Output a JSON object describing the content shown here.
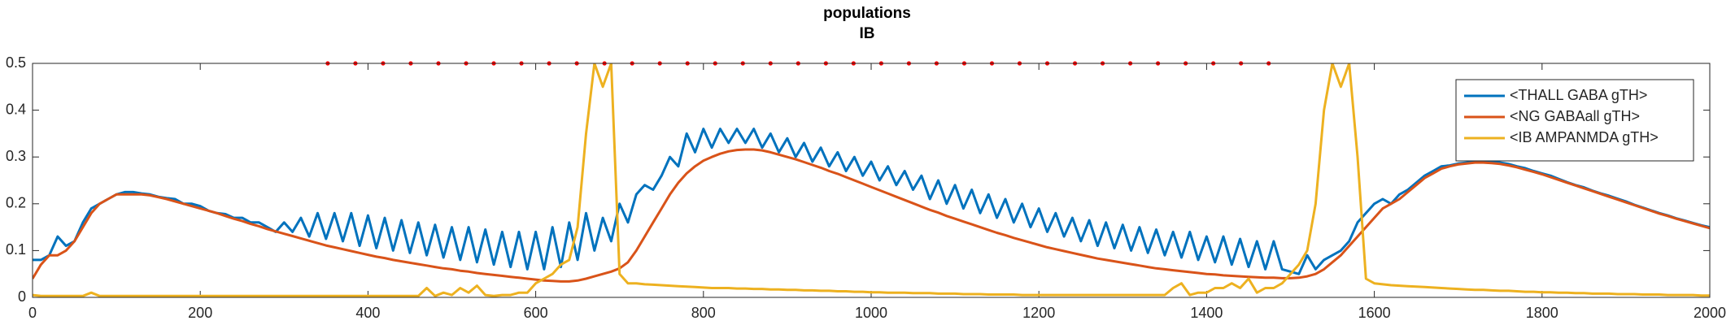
{
  "chart_data": {
    "type": "line",
    "title": "populations",
    "subtitle": "IB",
    "x": [
      0,
      10,
      20,
      30,
      40,
      50,
      60,
      70,
      80,
      90,
      100,
      110,
      120,
      130,
      140,
      150,
      160,
      170,
      180,
      190,
      200,
      210,
      220,
      230,
      240,
      250,
      260,
      270,
      280,
      290,
      300,
      310,
      320,
      330,
      340,
      350,
      360,
      370,
      380,
      390,
      400,
      410,
      420,
      430,
      440,
      450,
      460,
      470,
      480,
      490,
      500,
      510,
      520,
      530,
      540,
      550,
      560,
      570,
      580,
      590,
      600,
      610,
      620,
      630,
      640,
      650,
      660,
      670,
      680,
      690,
      700,
      710,
      720,
      730,
      740,
      750,
      760,
      770,
      780,
      790,
      800,
      810,
      820,
      830,
      840,
      850,
      860,
      870,
      880,
      890,
      900,
      910,
      920,
      930,
      940,
      950,
      960,
      970,
      980,
      990,
      1000,
      1010,
      1020,
      1030,
      1040,
      1050,
      1060,
      1070,
      1080,
      1090,
      1100,
      1110,
      1120,
      1130,
      1140,
      1150,
      1160,
      1170,
      1180,
      1190,
      1200,
      1210,
      1220,
      1230,
      1240,
      1250,
      1260,
      1270,
      1280,
      1290,
      1300,
      1310,
      1320,
      1330,
      1340,
      1350,
      1360,
      1370,
      1380,
      1390,
      1400,
      1410,
      1420,
      1430,
      1440,
      1450,
      1460,
      1470,
      1480,
      1490,
      1500,
      1510,
      1520,
      1530,
      1540,
      1550,
      1560,
      1570,
      1580,
      1590,
      1600,
      1610,
      1620,
      1630,
      1640,
      1650,
      1660,
      1670,
      1680,
      1690,
      1700,
      1710,
      1720,
      1730,
      1740,
      1750,
      1760,
      1770,
      1780,
      1790,
      1800,
      1810,
      1820,
      1830,
      1840,
      1850,
      1860,
      1870,
      1880,
      1890,
      1900,
      1910,
      1920,
      1930,
      1940,
      1950,
      1960,
      1970,
      1980,
      1990,
      2000
    ],
    "series": [
      {
        "name": "<THALL GABA gTH>",
        "color": "#0072bd",
        "values": [
          0.08,
          0.08,
          0.09,
          0.13,
          0.11,
          0.12,
          0.16,
          0.19,
          0.2,
          0.21,
          0.22,
          0.225,
          0.225,
          0.222,
          0.22,
          0.215,
          0.212,
          0.21,
          0.2,
          0.2,
          0.195,
          0.185,
          0.18,
          0.178,
          0.17,
          0.17,
          0.16,
          0.16,
          0.15,
          0.14,
          0.16,
          0.14,
          0.17,
          0.13,
          0.18,
          0.125,
          0.18,
          0.12,
          0.18,
          0.11,
          0.175,
          0.105,
          0.17,
          0.1,
          0.165,
          0.095,
          0.16,
          0.09,
          0.155,
          0.085,
          0.15,
          0.08,
          0.15,
          0.075,
          0.145,
          0.07,
          0.14,
          0.065,
          0.14,
          0.06,
          0.14,
          0.06,
          0.15,
          0.065,
          0.16,
          0.08,
          0.18,
          0.1,
          0.17,
          0.12,
          0.2,
          0.16,
          0.22,
          0.24,
          0.23,
          0.26,
          0.3,
          0.28,
          0.35,
          0.31,
          0.36,
          0.32,
          0.36,
          0.33,
          0.36,
          0.33,
          0.36,
          0.32,
          0.35,
          0.31,
          0.34,
          0.3,
          0.33,
          0.29,
          0.32,
          0.28,
          0.31,
          0.27,
          0.3,
          0.26,
          0.29,
          0.25,
          0.28,
          0.24,
          0.27,
          0.23,
          0.26,
          0.21,
          0.25,
          0.2,
          0.24,
          0.19,
          0.23,
          0.18,
          0.22,
          0.17,
          0.21,
          0.16,
          0.2,
          0.15,
          0.19,
          0.14,
          0.18,
          0.13,
          0.17,
          0.12,
          0.165,
          0.11,
          0.16,
          0.105,
          0.155,
          0.1,
          0.15,
          0.095,
          0.145,
          0.09,
          0.14,
          0.085,
          0.14,
          0.08,
          0.13,
          0.075,
          0.13,
          0.07,
          0.125,
          0.065,
          0.12,
          0.06,
          0.12,
          0.06,
          0.055,
          0.05,
          0.09,
          0.06,
          0.08,
          0.09,
          0.1,
          0.12,
          0.16,
          0.18,
          0.2,
          0.21,
          0.2,
          0.22,
          0.23,
          0.245,
          0.26,
          0.27,
          0.28,
          0.282,
          0.286,
          0.288,
          0.29,
          0.29,
          0.29,
          0.288,
          0.285,
          0.28,
          0.276,
          0.27,
          0.265,
          0.26,
          0.253,
          0.246,
          0.24,
          0.235,
          0.228,
          0.222,
          0.217,
          0.211,
          0.205,
          0.198,
          0.192,
          0.186,
          0.18,
          0.175,
          0.169,
          0.164,
          0.159,
          0.154,
          0.15
        ]
      },
      {
        "name": "<NG GABAall gTH>",
        "color": "#d95319",
        "values": [
          0.04,
          0.07,
          0.09,
          0.09,
          0.1,
          0.12,
          0.15,
          0.18,
          0.2,
          0.21,
          0.22,
          0.22,
          0.22,
          0.22,
          0.218,
          0.214,
          0.21,
          0.205,
          0.2,
          0.195,
          0.19,
          0.185,
          0.18,
          0.174,
          0.168,
          0.163,
          0.157,
          0.152,
          0.146,
          0.141,
          0.136,
          0.131,
          0.126,
          0.121,
          0.116,
          0.111,
          0.107,
          0.103,
          0.099,
          0.095,
          0.091,
          0.087,
          0.084,
          0.08,
          0.077,
          0.074,
          0.071,
          0.068,
          0.065,
          0.062,
          0.06,
          0.057,
          0.055,
          0.052,
          0.05,
          0.048,
          0.046,
          0.044,
          0.042,
          0.04,
          0.038,
          0.036,
          0.035,
          0.034,
          0.034,
          0.036,
          0.04,
          0.045,
          0.05,
          0.055,
          0.062,
          0.075,
          0.1,
          0.13,
          0.16,
          0.19,
          0.22,
          0.245,
          0.265,
          0.28,
          0.292,
          0.3,
          0.307,
          0.312,
          0.315,
          0.316,
          0.316,
          0.314,
          0.31,
          0.305,
          0.3,
          0.295,
          0.289,
          0.283,
          0.277,
          0.27,
          0.264,
          0.257,
          0.25,
          0.243,
          0.236,
          0.229,
          0.222,
          0.215,
          0.208,
          0.201,
          0.194,
          0.187,
          0.181,
          0.174,
          0.168,
          0.162,
          0.156,
          0.15,
          0.144,
          0.138,
          0.133,
          0.127,
          0.122,
          0.117,
          0.112,
          0.107,
          0.103,
          0.099,
          0.095,
          0.091,
          0.087,
          0.083,
          0.08,
          0.077,
          0.074,
          0.071,
          0.068,
          0.065,
          0.062,
          0.06,
          0.058,
          0.056,
          0.054,
          0.052,
          0.05,
          0.049,
          0.047,
          0.046,
          0.045,
          0.044,
          0.043,
          0.042,
          0.042,
          0.041,
          0.041,
          0.042,
          0.045,
          0.05,
          0.06,
          0.075,
          0.09,
          0.11,
          0.13,
          0.15,
          0.17,
          0.19,
          0.2,
          0.21,
          0.225,
          0.24,
          0.255,
          0.265,
          0.275,
          0.28,
          0.284,
          0.286,
          0.288,
          0.288,
          0.287,
          0.285,
          0.282,
          0.278,
          0.273,
          0.268,
          0.263,
          0.257,
          0.251,
          0.245,
          0.239,
          0.233,
          0.227,
          0.221,
          0.215,
          0.209,
          0.203,
          0.197,
          0.191,
          0.185,
          0.179,
          0.174,
          0.168,
          0.163,
          0.158,
          0.153,
          0.148
        ]
      },
      {
        "name": "<IB AMPANMDA gTH>",
        "color": "#edb120",
        "values": [
          0.005,
          0.003,
          0.003,
          0.003,
          0.003,
          0.003,
          0.003,
          0.01,
          0.003,
          0.003,
          0.003,
          0.003,
          0.003,
          0.003,
          0.003,
          0.003,
          0.003,
          0.003,
          0.003,
          0.003,
          0.003,
          0.003,
          0.003,
          0.003,
          0.003,
          0.003,
          0.003,
          0.003,
          0.003,
          0.003,
          0.003,
          0.003,
          0.003,
          0.003,
          0.003,
          0.003,
          0.003,
          0.003,
          0.003,
          0.003,
          0.003,
          0.003,
          0.003,
          0.003,
          0.003,
          0.003,
          0.003,
          0.02,
          0.003,
          0.01,
          0.005,
          0.02,
          0.01,
          0.025,
          0.005,
          0.003,
          0.005,
          0.005,
          0.01,
          0.01,
          0.03,
          0.04,
          0.05,
          0.07,
          0.08,
          0.15,
          0.35,
          0.5,
          0.45,
          0.5,
          0.05,
          0.03,
          0.03,
          0.028,
          0.027,
          0.026,
          0.025,
          0.024,
          0.023,
          0.022,
          0.021,
          0.02,
          0.02,
          0.02,
          0.019,
          0.019,
          0.018,
          0.018,
          0.017,
          0.017,
          0.016,
          0.016,
          0.015,
          0.015,
          0.014,
          0.014,
          0.013,
          0.013,
          0.012,
          0.012,
          0.011,
          0.011,
          0.01,
          0.01,
          0.01,
          0.009,
          0.009,
          0.009,
          0.008,
          0.008,
          0.008,
          0.007,
          0.007,
          0.007,
          0.006,
          0.006,
          0.006,
          0.006,
          0.005,
          0.005,
          0.005,
          0.005,
          0.005,
          0.005,
          0.005,
          0.005,
          0.005,
          0.005,
          0.005,
          0.005,
          0.005,
          0.005,
          0.005,
          0.005,
          0.005,
          0.005,
          0.02,
          0.03,
          0.005,
          0.01,
          0.01,
          0.02,
          0.02,
          0.03,
          0.02,
          0.04,
          0.01,
          0.02,
          0.02,
          0.03,
          0.05,
          0.07,
          0.1,
          0.2,
          0.4,
          0.5,
          0.45,
          0.5,
          0.3,
          0.04,
          0.03,
          0.028,
          0.026,
          0.025,
          0.024,
          0.023,
          0.022,
          0.021,
          0.02,
          0.019,
          0.018,
          0.017,
          0.016,
          0.016,
          0.015,
          0.014,
          0.014,
          0.013,
          0.012,
          0.012,
          0.011,
          0.011,
          0.01,
          0.01,
          0.009,
          0.009,
          0.008,
          0.008,
          0.008,
          0.007,
          0.007,
          0.007,
          0.006,
          0.006,
          0.006,
          0.005,
          0.005,
          0.005,
          0.005,
          0.004,
          0.004
        ]
      }
    ],
    "markers": {
      "color": "#ff0000",
      "x": [
        352,
        385,
        418,
        451,
        484,
        517,
        550,
        583,
        616,
        649,
        682,
        715,
        748,
        781,
        814,
        847,
        880,
        913,
        946,
        979,
        1012,
        1045,
        1078,
        1111,
        1144,
        1177,
        1210,
        1243,
        1276,
        1309,
        1342,
        1375,
        1408,
        1441,
        1474
      ],
      "values": [
        0.5,
        0.5,
        0.5,
        0.5,
        0.5,
        0.5,
        0.5,
        0.5,
        0.5,
        0.5,
        0.5,
        0.5,
        0.5,
        0.5,
        0.5,
        0.5,
        0.5,
        0.5,
        0.5,
        0.5,
        0.5,
        0.5,
        0.5,
        0.5,
        0.5,
        0.5,
        0.5,
        0.5,
        0.5,
        0.5,
        0.5,
        0.5,
        0.5,
        0.5,
        0.5
      ]
    },
    "xlim": [
      0,
      2000
    ],
    "xticks": [
      0,
      200,
      400,
      600,
      800,
      1000,
      1200,
      1400,
      1600,
      1800,
      2000
    ],
    "ylim": [
      0,
      0.5
    ],
    "yticks": [
      0,
      0.1,
      0.2,
      0.3,
      0.4,
      0.5
    ],
    "legend": "upper right"
  }
}
